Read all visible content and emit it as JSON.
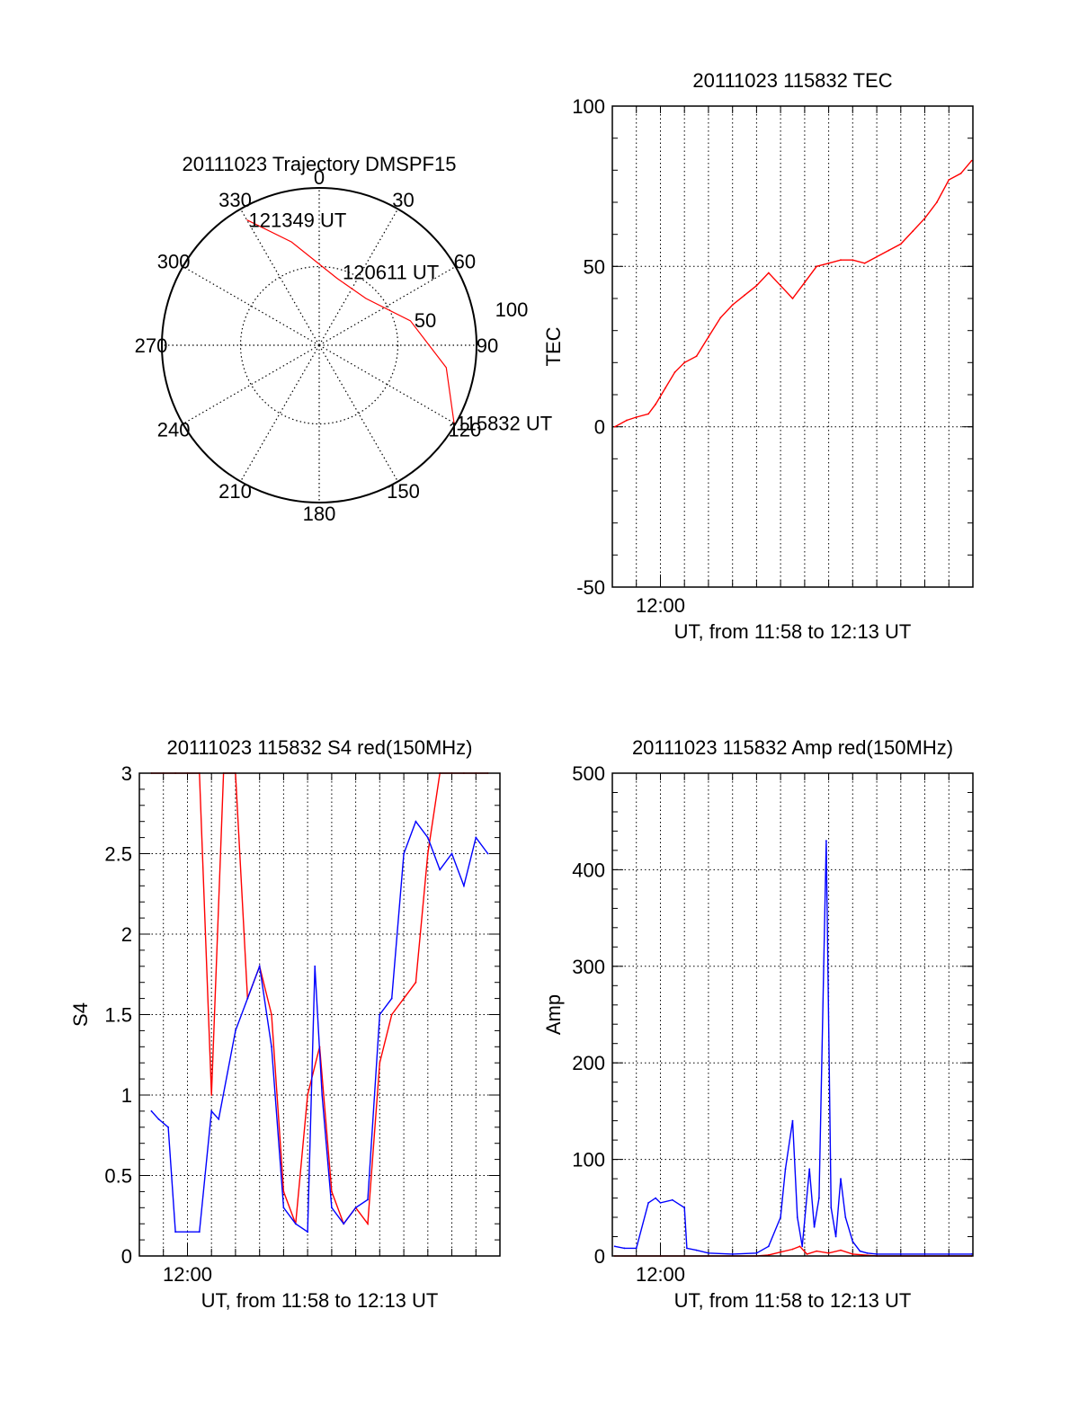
{
  "colors": {
    "series_red": "#ff0000",
    "series_blue": "#0000ff",
    "axis": "#000000",
    "grid": "#000000"
  },
  "chart_data": [
    {
      "type": "polar",
      "title": "20111023 Trajectory DMSPF15",
      "angle_labels": [
        "0",
        "30",
        "60",
        "90",
        "120",
        "150",
        "180",
        "210",
        "240",
        "270",
        "300",
        "330"
      ],
      "radius_labels": [
        "50",
        "100"
      ],
      "r_max": 100,
      "grid": true,
      "series": [
        {
          "color": "#ff0000",
          "points": [
            {
              "az": 330,
              "r": 92
            },
            {
              "az": 345,
              "r": 68
            },
            {
              "az": 15,
              "r": 44
            },
            {
              "az": 45,
              "r": 42
            },
            {
              "az": 75,
              "r": 60
            },
            {
              "az": 100,
              "r": 82
            },
            {
              "az": 120,
              "r": 99
            }
          ]
        }
      ],
      "annotations": [
        {
          "text": "121349 UT",
          "az": 330,
          "r": 92
        },
        {
          "text": "120611 UT",
          "az": 63,
          "r": 50
        },
        {
          "text": "115832 UT",
          "az": 120,
          "r": 99
        }
      ]
    },
    {
      "type": "line",
      "title": "20111023 115832 TEC",
      "xlabel": "UT, from 11:58 to 12:13 UT",
      "ylabel": "TEC",
      "xlim": [
        0,
        15
      ],
      "ylim": [
        -50,
        100
      ],
      "xticks": [
        {
          "x": 2,
          "label": "12:00"
        }
      ],
      "yticks": [
        -50,
        0,
        50,
        100
      ],
      "grid": true,
      "series": [
        {
          "color": "#ff0000",
          "x": [
            0.1,
            0.6,
            1.0,
            1.5,
            1.8,
            2.2,
            2.6,
            3.0,
            3.5,
            4.0,
            4.5,
            5.0,
            5.5,
            6.0,
            6.5,
            7.0,
            7.5,
            8.0,
            8.5,
            9.0,
            9.5,
            10.0,
            10.5,
            11.0,
            11.5,
            12.0,
            12.5,
            13.0,
            13.5,
            14.0,
            14.5,
            14.95
          ],
          "values": [
            0,
            2,
            3,
            4,
            7,
            12,
            17,
            20,
            22,
            28,
            34,
            38,
            41,
            44,
            48,
            44,
            40,
            45,
            50,
            51,
            52,
            52,
            51,
            53,
            55,
            57,
            61,
            65,
            70,
            77,
            79,
            83
          ]
        }
      ]
    },
    {
      "type": "line",
      "title": "20111023 115832 S4 red(150MHz)",
      "xlabel": "UT, from 11:58 to 12:13 UT",
      "ylabel": "S4",
      "xlim": [
        0,
        15
      ],
      "ylim": [
        0,
        3
      ],
      "xticks": [
        {
          "x": 2,
          "label": "12:00"
        }
      ],
      "yticks": [
        0,
        0.5,
        1,
        1.5,
        2,
        2.5,
        3
      ],
      "ytick_labels": [
        "0",
        "0.5",
        "1",
        "1.5",
        "2",
        "2.5",
        "3"
      ],
      "grid": true,
      "series": [
        {
          "color": "#ff0000",
          "x": [
            0.5,
            1.0,
            1.5,
            2.0,
            2.5,
            3.0,
            3.5,
            4.0,
            4.5,
            5.0,
            5.5,
            6.0,
            6.5,
            7.0,
            7.5,
            8.0,
            8.5,
            9.0,
            9.5,
            10.0,
            10.5,
            11.0,
            11.5,
            12.0,
            12.5,
            13.0,
            13.5,
            14.0,
            14.5
          ],
          "values": [
            3.0,
            3.0,
            3.0,
            3.0,
            3.0,
            1.0,
            3.0,
            3.0,
            1.6,
            1.8,
            1.5,
            0.4,
            0.2,
            1.0,
            1.3,
            0.4,
            0.2,
            0.3,
            0.2,
            1.2,
            1.5,
            1.6,
            1.7,
            2.5,
            3.0,
            3.0,
            3.0,
            3.0,
            3.0
          ]
        },
        {
          "color": "#0000ff",
          "x": [
            0.5,
            0.8,
            1.2,
            1.5,
            2.0,
            2.5,
            3.0,
            3.3,
            4.0,
            4.5,
            5.0,
            5.5,
            6.0,
            6.5,
            7.0,
            7.3,
            7.6,
            8.0,
            8.5,
            9.0,
            9.5,
            10.0,
            10.5,
            11.0,
            11.5,
            12.0,
            12.5,
            13.0,
            13.5,
            14.0,
            14.5
          ],
          "values": [
            0.9,
            0.85,
            0.8,
            0.15,
            0.15,
            0.15,
            0.9,
            0.85,
            1.4,
            1.6,
            1.8,
            1.3,
            0.3,
            0.2,
            0.15,
            1.8,
            1.0,
            0.3,
            0.2,
            0.3,
            0.35,
            1.5,
            1.6,
            2.5,
            2.7,
            2.6,
            2.4,
            2.5,
            2.3,
            2.6,
            2.5
          ]
        }
      ]
    },
    {
      "type": "line",
      "title": "20111023 115832 Amp red(150MHz)",
      "xlabel": "UT, from 11:58 to 12:13 UT",
      "ylabel": "Amp",
      "xlim": [
        0,
        15
      ],
      "ylim": [
        0,
        500
      ],
      "xticks": [
        {
          "x": 2,
          "label": "12:00"
        }
      ],
      "yticks": [
        0,
        100,
        200,
        300,
        400,
        500
      ],
      "grid": true,
      "series": [
        {
          "color": "#0000ff",
          "x": [
            0.1,
            0.5,
            1.0,
            1.5,
            1.8,
            2.0,
            2.5,
            3.0,
            3.1,
            3.5,
            4.0,
            5.0,
            6.0,
            6.5,
            7.0,
            7.2,
            7.5,
            7.7,
            7.9,
            8.2,
            8.4,
            8.6,
            8.9,
            9.1,
            9.3,
            9.5,
            9.7,
            10.0,
            10.3,
            10.6,
            11.0,
            12.0,
            13.0,
            14.0,
            14.95
          ],
          "values": [
            10,
            8,
            8,
            55,
            60,
            55,
            58,
            50,
            8,
            6,
            3,
            2,
            3,
            10,
            40,
            90,
            140,
            40,
            10,
            90,
            30,
            60,
            430,
            50,
            20,
            80,
            40,
            15,
            5,
            3,
            2,
            2,
            2,
            2,
            2
          ]
        },
        {
          "color": "#ff0000",
          "x": [
            0.1,
            2.0,
            4.0,
            6.0,
            6.5,
            7.0,
            7.5,
            7.8,
            8.1,
            8.5,
            9.0,
            9.5,
            10.0,
            11.0,
            13.0,
            14.95
          ],
          "values": [
            0,
            0,
            0,
            0,
            1,
            4,
            7,
            10,
            2,
            5,
            3,
            6,
            2,
            0,
            0,
            0
          ]
        }
      ]
    }
  ]
}
